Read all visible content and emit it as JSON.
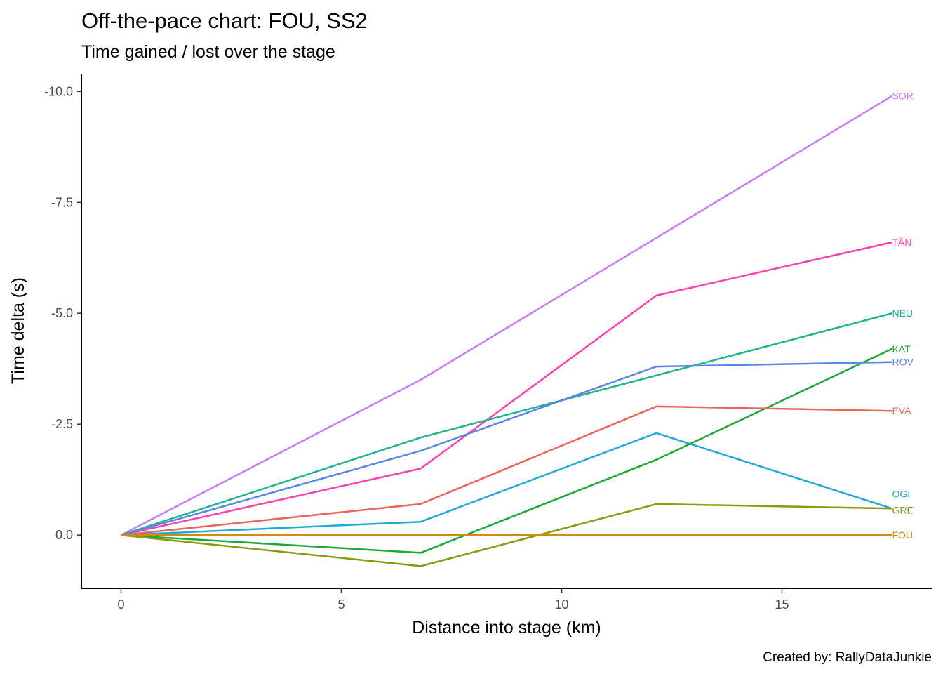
{
  "chart_data": {
    "type": "line",
    "title": "Off-the-pace chart: FOU, SS2",
    "subtitle": "Time gained / lost over the stage",
    "xlabel": "Distance into stage (km)",
    "ylabel": "Time delta (s)",
    "caption": "Created by: RallyDataJunkie",
    "xlim": [
      -0.9,
      18.4
    ],
    "ylim": [
      1.2,
      -10.4
    ],
    "y_reversed": true,
    "x_ticks": [
      0,
      5,
      10,
      15
    ],
    "x_tick_labels": [
      "0",
      "5",
      "10",
      "15"
    ],
    "y_ticks": [
      -10,
      -7.5,
      -5,
      -2.5,
      0
    ],
    "y_tick_labels": [
      "-10.0",
      "-7.5",
      "-5.0",
      "-2.5",
      "0.0"
    ],
    "grid": false,
    "legend": "none (direct labels at line ends)",
    "x": [
      0,
      6.8,
      12.15,
      17.5
    ],
    "series": [
      {
        "name": "SOR",
        "color": "#C77CFF",
        "values": [
          0,
          -3.5,
          -6.7,
          -9.9
        ]
      },
      {
        "name": "TÄN",
        "color": "#FF40B0",
        "values": [
          0,
          -1.5,
          -5.4,
          -6.6
        ]
      },
      {
        "name": "NEU",
        "color": "#1FB48F",
        "values": [
          0,
          -2.2,
          -3.6,
          -5.0
        ]
      },
      {
        "name": "KAT",
        "color": "#1BAA36",
        "values": [
          0,
          0.4,
          -1.7,
          -4.2
        ]
      },
      {
        "name": "ROV",
        "color": "#5A86E8",
        "values": [
          0,
          -1.9,
          -3.8,
          -3.9
        ]
      },
      {
        "name": "EVA",
        "color": "#EB6459",
        "values": [
          0,
          -0.7,
          -2.9,
          -2.8
        ]
      },
      {
        "name": "OGI",
        "color": "#1EA9D9",
        "values": [
          0,
          -0.3,
          -2.3,
          -0.6
        ]
      },
      {
        "name": "GRE",
        "color": "#8A9A10",
        "values": [
          0,
          0.7,
          -0.7,
          -0.6
        ]
      },
      {
        "name": "FOU",
        "color": "#CD8B14",
        "values": [
          0,
          0,
          0,
          0
        ]
      }
    ]
  }
}
